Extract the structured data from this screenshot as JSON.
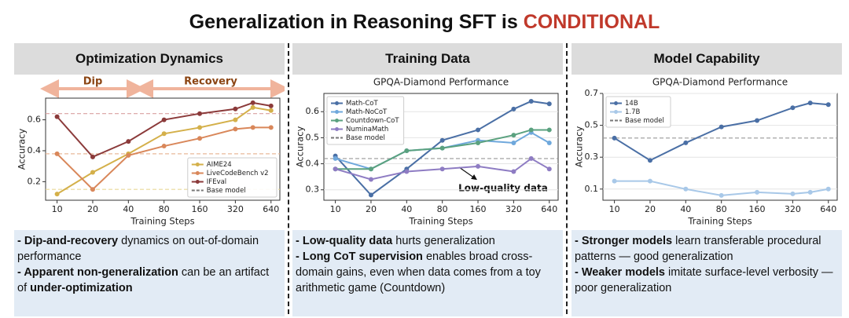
{
  "title": {
    "text": "Generalization in Reasoning SFT is",
    "highlight": "CONDITIONAL",
    "highlight_color": "#c0392b"
  },
  "panels": [
    {
      "header": "Optimization Dynamics",
      "notes": [
        [
          {
            "text": "- Dip-and-recovery",
            "bold": true
          },
          {
            "text": " dynamics on out-of-domain performance",
            "bold": false
          }
        ],
        [
          {
            "text": "- Apparent non-generalization",
            "bold": true
          },
          {
            "text": " can be an artifact of ",
            "bold": false
          },
          {
            "text": "under-optimization",
            "bold": true
          }
        ]
      ]
    },
    {
      "header": "Training Data",
      "notes": [
        [
          {
            "text": "- Low-quality data",
            "bold": true
          },
          {
            "text": " hurts generalization",
            "bold": false
          }
        ],
        [
          {
            "text": "- Long CoT supervision",
            "bold": true
          },
          {
            "text": " enables broad cross-domain gains, even when data comes from a toy arithmetic game (Countdown)",
            "bold": false
          }
        ]
      ]
    },
    {
      "header": "Model Capability",
      "notes": [
        [
          {
            "text": "- Stronger models",
            "bold": true
          },
          {
            "text": " learn transferable procedural patterns — good generalization",
            "bold": false
          }
        ],
        [
          {
            "text": "- Weaker models",
            "bold": true
          },
          {
            "text": " imitate surface-level verbosity — poor generalization",
            "bold": false
          }
        ]
      ]
    }
  ],
  "chart_data": [
    {
      "type": "line",
      "xlabel": "Training Steps",
      "ylabel": "Accuracy",
      "xscale": "log",
      "grid": false,
      "legend": "lower right",
      "annotations": [
        "Dip",
        "Recovery"
      ],
      "x": [
        10,
        20,
        40,
        80,
        160,
        320,
        450,
        640
      ],
      "xlim": [
        8,
        760
      ],
      "xticks": [
        10,
        20,
        40,
        80,
        160,
        320,
        640
      ],
      "ylim": [
        0.08,
        0.74
      ],
      "yticks": [
        0.2,
        0.4,
        0.6
      ],
      "series": [
        {
          "name": "AIME24",
          "color": "#d4b04a",
          "values": [
            0.12,
            0.26,
            0.38,
            0.51,
            0.55,
            0.6,
            0.68,
            0.66
          ]
        },
        {
          "name": "LiveCodeBench v2",
          "color": "#d9875a",
          "values": [
            0.38,
            0.15,
            0.37,
            0.43,
            0.48,
            0.54,
            0.55,
            0.55
          ]
        },
        {
          "name": "IFEval",
          "color": "#8b3a3a",
          "values": [
            0.62,
            0.36,
            0.46,
            0.6,
            0.64,
            0.67,
            0.71,
            0.69
          ]
        }
      ],
      "baseline": {
        "name": "Base model",
        "values": [
          0.64,
          0.38,
          0.15
        ],
        "colors": [
          "#d9a0a0",
          "#e8b898",
          "#e8d898"
        ]
      }
    },
    {
      "type": "line",
      "title": "GPQA-Diamond Performance",
      "xlabel": "Training Steps",
      "ylabel": "Accuracy",
      "xscale": "log",
      "grid": true,
      "legend": "upper left",
      "annotations": [
        "Low-quality data"
      ],
      "x": [
        10,
        20,
        40,
        80,
        160,
        320,
        450,
        640
      ],
      "xlim": [
        8,
        760
      ],
      "xticks": [
        10,
        20,
        40,
        80,
        160,
        320,
        640
      ],
      "ylim": [
        0.26,
        0.67
      ],
      "yticks": [
        0.3,
        0.4,
        0.5,
        0.6
      ],
      "series": [
        {
          "name": "Math-CoT",
          "color": "#4a6fa5",
          "values": [
            0.43,
            0.28,
            0.38,
            0.49,
            0.53,
            0.61,
            0.64,
            0.63
          ]
        },
        {
          "name": "Math-NoCoT",
          "color": "#6fa8dc",
          "values": [
            0.42,
            0.38,
            0.45,
            0.46,
            0.49,
            0.48,
            0.52,
            0.48
          ]
        },
        {
          "name": "Countdown-CoT",
          "color": "#5aa17f",
          "values": [
            0.38,
            0.38,
            0.45,
            0.46,
            0.48,
            0.51,
            0.53,
            0.53
          ]
        },
        {
          "name": "NuminaMath",
          "color": "#8e7cc3",
          "values": [
            0.38,
            0.34,
            0.37,
            0.38,
            0.39,
            0.37,
            0.42,
            0.38
          ]
        }
      ],
      "baseline": {
        "name": "Base model",
        "values": [
          0.42
        ],
        "colors": [
          "#999999"
        ]
      }
    },
    {
      "type": "line",
      "title": "GPQA-Diamond Performance",
      "xlabel": "Training Steps",
      "ylabel": "Accuracy",
      "xscale": "log",
      "grid": true,
      "legend": "upper left",
      "x": [
        10,
        20,
        40,
        80,
        160,
        320,
        450,
        640
      ],
      "xlim": [
        8,
        760
      ],
      "xticks": [
        10,
        20,
        40,
        80,
        160,
        320,
        640
      ],
      "ylim": [
        0.03,
        0.7
      ],
      "yticks": [
        0.1,
        0.3,
        0.5,
        0.7
      ],
      "series": [
        {
          "name": "14B",
          "color": "#4a6fa5",
          "values": [
            0.42,
            0.28,
            0.39,
            0.49,
            0.53,
            0.61,
            0.64,
            0.63
          ]
        },
        {
          "name": "1.7B",
          "color": "#a8c8e8",
          "values": [
            0.15,
            0.15,
            0.1,
            0.06,
            0.08,
            0.07,
            0.08,
            0.1
          ]
        }
      ],
      "baseline": {
        "name": "Base model",
        "values": [
          0.42
        ],
        "colors": [
          "#999999"
        ]
      }
    }
  ]
}
